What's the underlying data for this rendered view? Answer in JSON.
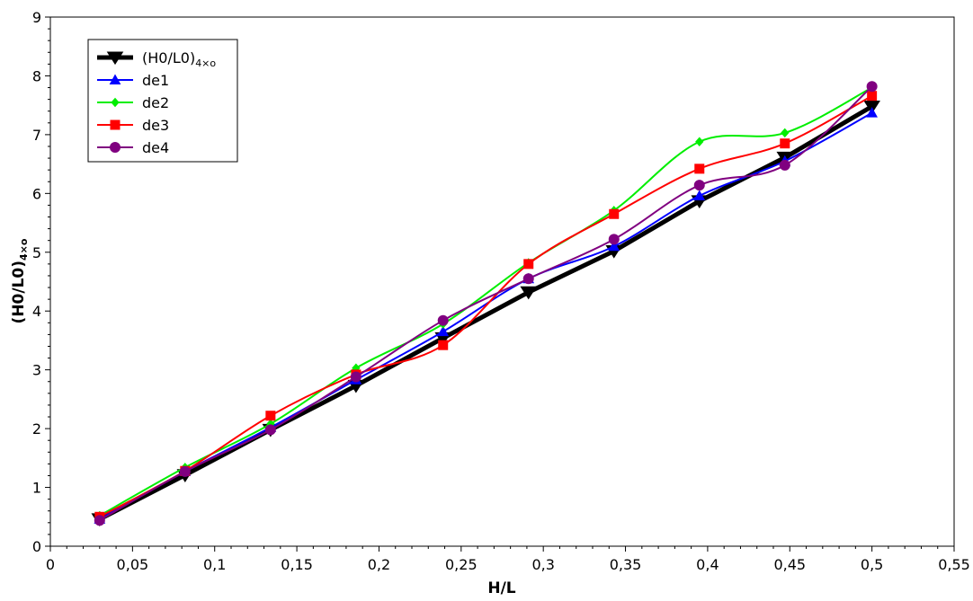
{
  "chart_data": {
    "type": "line",
    "xlabel": "H/L",
    "ylabel": "(H0/L0)",
    "ylabel_sub": "4×o",
    "xlim": [
      0,
      0.55
    ],
    "ylim": [
      0,
      9
    ],
    "x_ticks": [
      "0",
      "0,05",
      "0,1",
      "0,15",
      "0,2",
      "0,25",
      "0,3",
      "0,35",
      "0,4",
      "0,45",
      "0,5",
      "0,55"
    ],
    "y_ticks": [
      "0",
      "1",
      "2",
      "3",
      "4",
      "5",
      "6",
      "7",
      "8",
      "9"
    ],
    "grid": false,
    "legend_position": "top-left",
    "x": [
      0.03,
      0.082,
      0.134,
      0.186,
      0.239,
      0.291,
      0.343,
      0.395,
      0.447,
      0.5
    ],
    "series": [
      {
        "name": "(H0/L0)",
        "name_sub": "4×o",
        "color": "#000000",
        "marker": "triangle-down",
        "line_width": 5,
        "values": [
          0.46,
          1.21,
          1.98,
          2.73,
          3.54,
          4.32,
          5.02,
          5.87,
          6.61,
          7.48
        ]
      },
      {
        "name": "de1",
        "color": "#0000ff",
        "marker": "triangle-up",
        "line_width": 2,
        "values": [
          0.46,
          1.27,
          2.02,
          2.83,
          3.65,
          4.55,
          5.1,
          5.96,
          6.55,
          7.37
        ]
      },
      {
        "name": "de2",
        "color": "#00ee00",
        "marker": "diamond",
        "line_width": 2,
        "values": [
          0.52,
          1.34,
          2.08,
          3.03,
          3.78,
          4.82,
          5.71,
          6.88,
          7.03,
          7.8
        ]
      },
      {
        "name": "de3",
        "color": "#ff0000",
        "marker": "square",
        "line_width": 2,
        "values": [
          0.5,
          1.28,
          2.22,
          2.92,
          3.42,
          4.8,
          5.65,
          6.42,
          6.85,
          7.66
        ]
      },
      {
        "name": "de4",
        "color": "#800080",
        "marker": "circle",
        "line_width": 2,
        "values": [
          0.44,
          1.27,
          1.98,
          2.88,
          3.84,
          4.55,
          5.22,
          6.14,
          6.48,
          7.82
        ]
      }
    ]
  }
}
